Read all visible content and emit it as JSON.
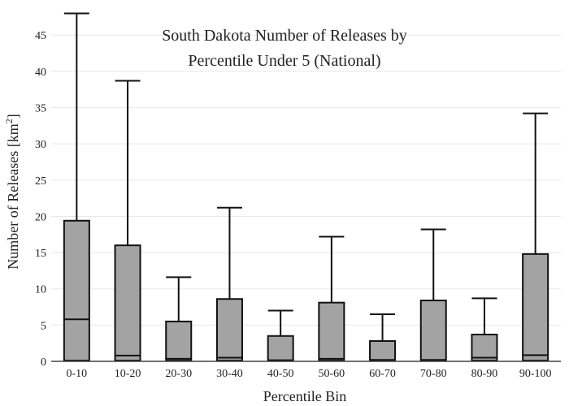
{
  "chart_data": {
    "type": "box",
    "title_lines": [
      "South Dakota Number of Releases by",
      "Percentile Under 5 (National)"
    ],
    "xlabel": "Percentile Bin",
    "ylabel_main": "Number of Releases  [km",
    "ylabel_sup": "2",
    "ylabel_end": "]",
    "ylim": [
      0,
      48.5
    ],
    "yticks": [
      0,
      5,
      10,
      15,
      20,
      25,
      30,
      35,
      40,
      45
    ],
    "grid": true,
    "categories": [
      "0-10",
      "10-20",
      "20-30",
      "30-40",
      "40-50",
      "50-60",
      "60-70",
      "70-80",
      "80-90",
      "90-100"
    ],
    "series": [
      {
        "q1": [
          0.1,
          0.1,
          0.1,
          0.1,
          0.05,
          0.1,
          0.1,
          0.05,
          0.1,
          0.1
        ],
        "median": [
          5.8,
          0.8,
          0.35,
          0.5,
          0.15,
          0.35,
          0.2,
          0.2,
          0.5,
          0.85
        ],
        "q3": [
          19.4,
          16.0,
          5.5,
          8.6,
          3.5,
          8.1,
          2.8,
          8.4,
          3.7,
          14.8
        ],
        "upper_whisker": [
          48.0,
          38.7,
          11.6,
          21.2,
          7.0,
          17.2,
          6.5,
          18.2,
          8.7,
          34.2
        ]
      }
    ],
    "box_fill": "#a3a3a3",
    "line_color": "#111111",
    "grid_color": "#e8e8e8",
    "axis_color": "#444444"
  }
}
